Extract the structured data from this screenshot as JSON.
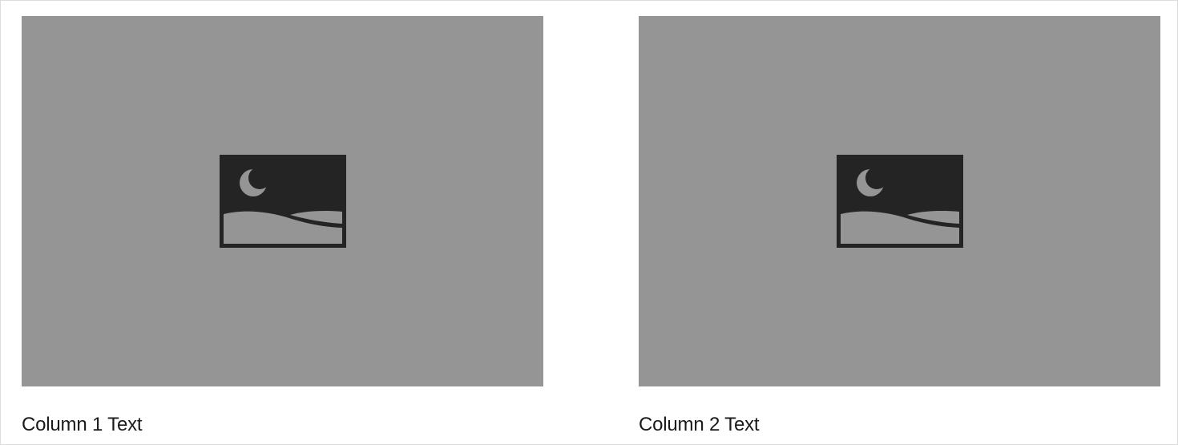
{
  "columns": [
    {
      "text": "Column 1 Text",
      "image": {
        "icon": "image-placeholder-icon",
        "alt": ""
      }
    },
    {
      "text": "Column 2 Text",
      "image": {
        "icon": "image-placeholder-icon",
        "alt": ""
      }
    }
  ],
  "colors": {
    "placeholder_background": "#959595",
    "icon_fill": "#242424",
    "text": "#1a1a1a"
  }
}
